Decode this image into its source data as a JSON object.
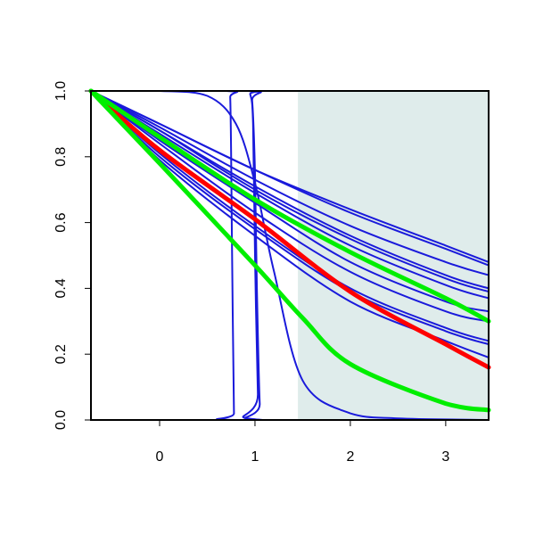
{
  "chart_data": {
    "type": "line",
    "title": "",
    "xlabel": "",
    "ylabel": "",
    "xlim": [
      -0.72,
      3.45
    ],
    "ylim": [
      0,
      1
    ],
    "xticks": [
      "0",
      "1",
      "2",
      "3"
    ],
    "yticks": [
      "0.0",
      "0.2",
      "0.4",
      "0.6",
      "0.8",
      "1.0"
    ],
    "grid": false,
    "legend": "none",
    "shaded_region": {
      "x_from": 1.45,
      "x_to": 3.45,
      "color": "#dfeceb"
    },
    "series": [
      {
        "color": "#1a1adb",
        "x": [
          -0.72,
          0,
          1,
          2,
          3,
          3.45
        ],
        "y": [
          1.0,
          0.9,
          0.76,
          0.64,
          0.53,
          0.48
        ]
      },
      {
        "color": "#1a1adb",
        "x": [
          -0.72,
          0,
          1,
          2,
          3,
          3.45
        ],
        "y": [
          1.0,
          0.9,
          0.76,
          0.63,
          0.52,
          0.47
        ]
      },
      {
        "color": "#1a1adb",
        "x": [
          -0.72,
          0,
          1,
          2,
          3,
          3.45
        ],
        "y": [
          1.0,
          0.89,
          0.73,
          0.59,
          0.48,
          0.44
        ]
      },
      {
        "color": "#1a1adb",
        "x": [
          -0.72,
          0,
          1,
          2,
          3,
          3.45
        ],
        "y": [
          1.0,
          0.88,
          0.71,
          0.56,
          0.44,
          0.4
        ]
      },
      {
        "color": "#1a1adb",
        "x": [
          -0.72,
          0,
          1,
          2,
          3,
          3.45
        ],
        "y": [
          1.0,
          0.88,
          0.7,
          0.55,
          0.43,
          0.39
        ]
      },
      {
        "color": "#1a1adb",
        "x": [
          -0.72,
          0,
          1,
          2,
          3,
          3.45
        ],
        "y": [
          1.0,
          0.87,
          0.69,
          0.53,
          0.41,
          0.37
        ]
      },
      {
        "color": "#1a1adb",
        "x": [
          -0.72,
          0,
          1,
          2,
          3,
          3.45
        ],
        "y": [
          1.0,
          0.85,
          0.66,
          0.48,
          0.36,
          0.33
        ]
      },
      {
        "color": "#1a1adb",
        "x": [
          -0.72,
          0,
          1,
          2,
          3,
          3.45
        ],
        "y": [
          1.0,
          0.84,
          0.63,
          0.45,
          0.33,
          0.3
        ]
      },
      {
        "color": "#1a1adb",
        "x": [
          -0.72,
          0,
          1,
          2,
          3,
          3.45
        ],
        "y": [
          1.0,
          0.81,
          0.59,
          0.4,
          0.28,
          0.24
        ]
      },
      {
        "color": "#1a1adb",
        "x": [
          -0.72,
          0,
          1,
          2,
          3,
          3.45
        ],
        "y": [
          1.0,
          0.8,
          0.58,
          0.39,
          0.27,
          0.23
        ]
      },
      {
        "color": "#1a1adb",
        "x": [
          -0.72,
          0,
          1,
          2,
          3,
          3.45
        ],
        "y": [
          1.0,
          0.79,
          0.56,
          0.36,
          0.24,
          0.19
        ]
      },
      {
        "color": "#ff0000",
        "x": [
          -0.72,
          0,
          1,
          2,
          3,
          3.45
        ],
        "y": [
          1.0,
          0.82,
          0.61,
          0.39,
          0.23,
          0.16
        ]
      },
      {
        "color": "#00ee00",
        "x": [
          -0.72,
          0,
          1,
          2,
          3,
          3.45
        ],
        "y": [
          1.0,
          0.86,
          0.67,
          0.51,
          0.37,
          0.3
        ]
      },
      {
        "color": "#00ee00",
        "x": [
          -0.72,
          0,
          1,
          1.5,
          2,
          3,
          3.45
        ],
        "y": [
          1.0,
          0.78,
          0.47,
          0.31,
          0.17,
          0.05,
          0.03
        ]
      },
      {
        "color": "#1a1adb",
        "x": [
          -0.72,
          0,
          0.5,
          0.8,
          1.0,
          1.2,
          1.5,
          2,
          2.5,
          3.45
        ],
        "y": [
          1.0,
          1.0,
          0.985,
          0.9,
          0.72,
          0.45,
          0.12,
          0.02,
          0.005,
          0.0
        ]
      },
      {
        "color": "#1a1adb",
        "x": [
          -0.72,
          0.7,
          0.74,
          0.76,
          0.78,
          0.8,
          3.45
        ],
        "y": [
          1.0,
          1.0,
          0.98,
          0.5,
          0.02,
          0.0,
          0.0
        ]
      },
      {
        "color": "#1a1adb",
        "x": [
          -0.72,
          0.9,
          0.95,
          0.98,
          1.0,
          1.03,
          1.06,
          3.45
        ],
        "y": [
          1.0,
          1.0,
          0.99,
          0.9,
          0.5,
          0.08,
          0.0,
          0.0
        ]
      },
      {
        "color": "#1a1adb",
        "x": [
          -0.72,
          0.93,
          0.97,
          1.0,
          1.02,
          1.05,
          1.08,
          3.45
        ],
        "y": [
          1.0,
          1.0,
          0.97,
          0.75,
          0.4,
          0.05,
          0.0,
          0.0
        ]
      }
    ]
  }
}
